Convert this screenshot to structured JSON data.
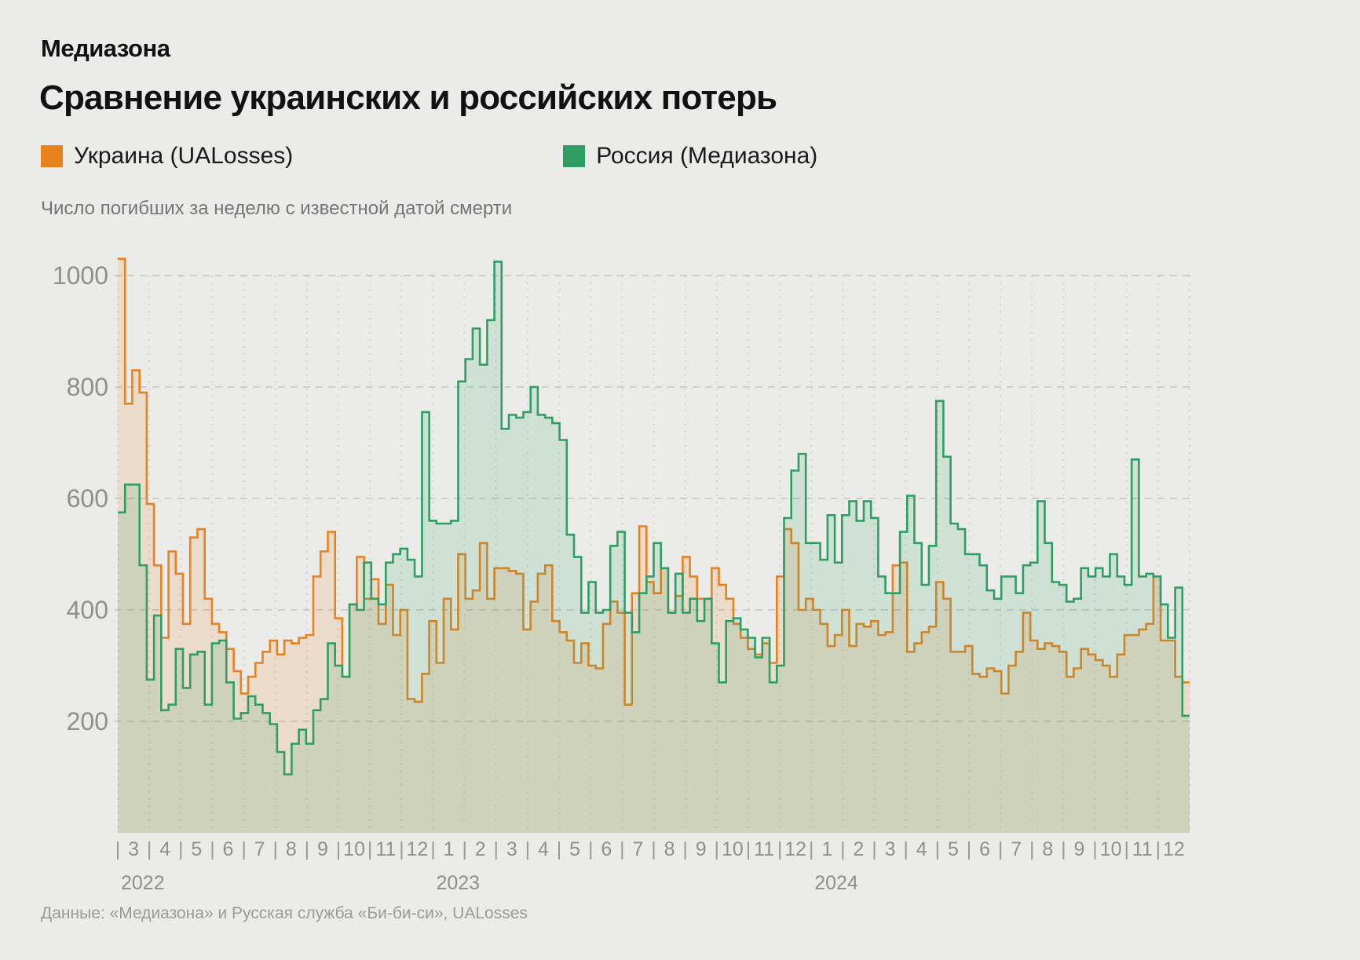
{
  "brand": "Медиазона",
  "title": "Сравнение украинских и российских потерь",
  "subtitle": "Число погибших за неделю с известной датой смерти",
  "footer": "Данные: «Медиазона» и Русская служба «Би-би-си», UALosses",
  "legend": [
    {
      "label": "Украина (UALosses)",
      "color": "#e8821f"
    },
    {
      "label": "Россия (Медиазона)",
      "color": "#2e9d62"
    }
  ],
  "colors": {
    "background": "#ebebe9",
    "ukraine_stroke": "#e8821f",
    "ukraine_fill": "rgba(232,130,31,0.15)",
    "russia_stroke": "#2f9e63",
    "russia_fill": "rgba(47,158,99,0.15)",
    "gridline": "#c3c3c0",
    "axis_text": "#8f8f8d"
  },
  "chart_data": {
    "type": "area",
    "mode": "step-weekly",
    "title": "Сравнение украинских и российских потерь",
    "subtitle": "Число погибших за неделю с известной датой смерти",
    "ylabel": "",
    "xlabel": "",
    "ylim": [
      0,
      1080
    ],
    "yticks": [
      200,
      400,
      600,
      800,
      1000
    ],
    "grid": true,
    "legend_position": "top",
    "x_start": "2022-03",
    "x_end": "2024-12",
    "month_labels": [
      "3",
      "4",
      "5",
      "6",
      "7",
      "8",
      "9",
      "10",
      "11",
      "12",
      "1",
      "2",
      "3",
      "4",
      "5",
      "6",
      "7",
      "8",
      "9",
      "10",
      "11",
      "12",
      "1",
      "2",
      "3",
      "4",
      "5",
      "6",
      "7",
      "8",
      "9",
      "10",
      "11",
      "12"
    ],
    "year_labels": [
      {
        "label": "2022",
        "month_index": 0
      },
      {
        "label": "2023",
        "month_index": 10
      },
      {
        "label": "2024",
        "month_index": 22
      }
    ],
    "series": [
      {
        "name": "Украина (UALosses)",
        "color": "#e8821f",
        "values": [
          1030,
          770,
          830,
          790,
          590,
          480,
          350,
          505,
          465,
          375,
          530,
          545,
          420,
          375,
          360,
          330,
          290,
          250,
          280,
          305,
          325,
          345,
          320,
          345,
          340,
          350,
          355,
          460,
          505,
          540,
          385,
          280,
          410,
          495,
          420,
          455,
          375,
          445,
          355,
          400,
          240,
          235,
          285,
          380,
          305,
          420,
          365,
          500,
          420,
          435,
          520,
          420,
          475,
          475,
          470,
          465,
          365,
          415,
          465,
          480,
          380,
          360,
          345,
          305,
          340,
          300,
          295,
          375,
          415,
          395,
          230,
          430,
          550,
          450,
          430,
          475,
          395,
          425,
          495,
          460,
          420,
          420,
          475,
          445,
          420,
          375,
          350,
          330,
          320,
          340,
          305,
          460,
          545,
          520,
          400,
          420,
          400,
          375,
          335,
          355,
          400,
          335,
          375,
          370,
          380,
          355,
          360,
          480,
          485,
          325,
          340,
          360,
          370,
          450,
          420,
          325,
          325,
          335,
          285,
          280,
          295,
          290,
          250,
          300,
          325,
          395,
          345,
          330,
          340,
          335,
          325,
          280,
          295,
          330,
          320,
          310,
          300,
          280,
          320,
          355,
          355,
          365,
          375,
          460,
          345,
          345,
          280,
          270
        ]
      },
      {
        "name": "Россия (Медиазона)",
        "color": "#2f9e63",
        "values": [
          575,
          625,
          625,
          480,
          275,
          390,
          220,
          230,
          330,
          260,
          320,
          325,
          230,
          340,
          345,
          270,
          205,
          215,
          245,
          230,
          215,
          195,
          145,
          105,
          160,
          185,
          160,
          220,
          240,
          340,
          300,
          280,
          410,
          400,
          485,
          420,
          410,
          485,
          500,
          510,
          490,
          460,
          755,
          560,
          555,
          555,
          560,
          810,
          850,
          905,
          840,
          920,
          1025,
          725,
          750,
          745,
          755,
          800,
          750,
          745,
          735,
          705,
          535,
          495,
          395,
          450,
          395,
          400,
          515,
          540,
          395,
          360,
          430,
          460,
          520,
          475,
          395,
          465,
          395,
          420,
          380,
          420,
          340,
          270,
          380,
          385,
          365,
          350,
          315,
          350,
          270,
          300,
          565,
          650,
          680,
          520,
          520,
          490,
          570,
          485,
          570,
          595,
          560,
          595,
          565,
          460,
          430,
          430,
          540,
          605,
          520,
          445,
          515,
          775,
          675,
          555,
          545,
          500,
          500,
          480,
          435,
          420,
          460,
          460,
          430,
          480,
          485,
          595,
          520,
          450,
          445,
          415,
          420,
          475,
          460,
          475,
          460,
          500,
          460,
          445,
          670,
          460,
          465,
          460,
          410,
          350,
          440,
          210
        ]
      }
    ]
  }
}
